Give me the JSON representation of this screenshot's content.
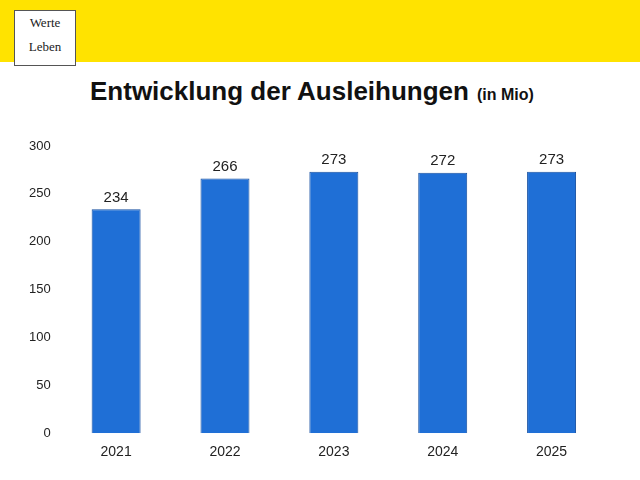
{
  "chart_data": {
    "type": "bar",
    "title": "Entwicklung der Ausleihungen",
    "subtitle": "(in Mio)",
    "annotations": [
      "Werte",
      "Leben"
    ],
    "categories": [
      "2021",
      "2022",
      "2023",
      "2024",
      "2025"
    ],
    "values": [
      234,
      266,
      273,
      272,
      273
    ],
    "color": "#1f6fd6",
    "ylim": [
      0,
      300
    ],
    "yticks": [
      0,
      50,
      100,
      150,
      200,
      250,
      300
    ],
    "grid": false,
    "data_labels": true
  }
}
